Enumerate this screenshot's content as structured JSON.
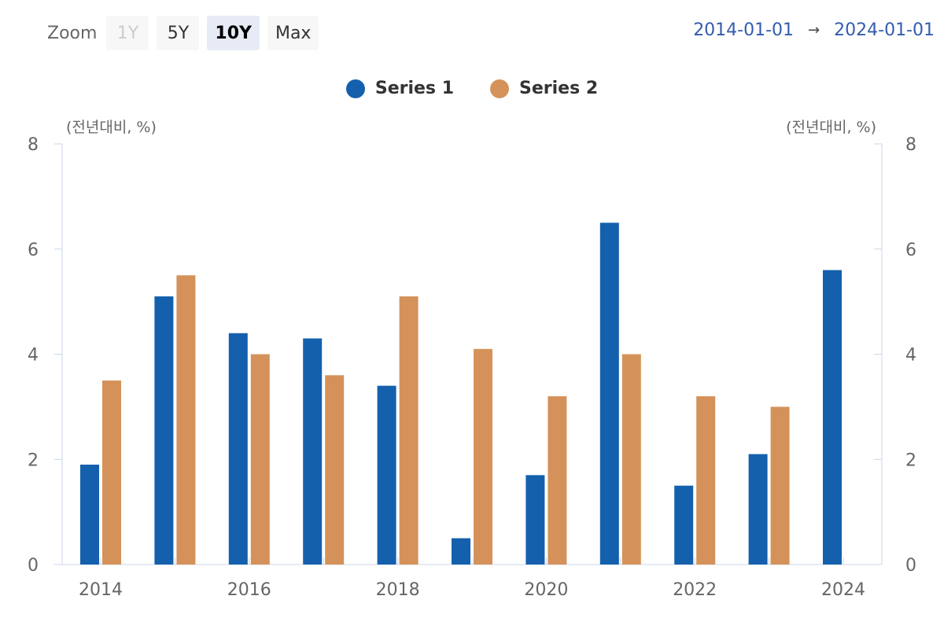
{
  "toolbar": {
    "zoom_label": "Zoom",
    "buttons": [
      {
        "label": "1Y",
        "state": "disabled"
      },
      {
        "label": "5Y",
        "state": "normal"
      },
      {
        "label": "10Y",
        "state": "active"
      },
      {
        "label": "Max",
        "state": "normal"
      }
    ]
  },
  "range": {
    "from": "2014-01-01",
    "arrow": "→",
    "to": "2024-01-01"
  },
  "colors": {
    "series1": "#1460ad",
    "series2": "#d4925a",
    "axis_line": "#ccd6eb",
    "link": "#335cad"
  },
  "chart_data": {
    "type": "bar",
    "categories": [
      "2014",
      "2015",
      "2016",
      "2017",
      "2018",
      "2019",
      "2020",
      "2021",
      "2022",
      "2023",
      "2024"
    ],
    "x_tick_labels": [
      "2014",
      "2016",
      "2018",
      "2020",
      "2022",
      "2024"
    ],
    "series": [
      {
        "name": "Series 1",
        "values": [
          1.9,
          5.1,
          4.4,
          4.3,
          3.4,
          0.5,
          1.7,
          6.5,
          1.5,
          2.1,
          5.6
        ]
      },
      {
        "name": "Series 2",
        "values": [
          3.5,
          5.5,
          4.0,
          3.6,
          5.1,
          4.1,
          3.2,
          4.0,
          3.2,
          3.0,
          null
        ]
      }
    ],
    "y_left": {
      "title": "(전년대비, %)",
      "ylim": [
        0,
        8
      ],
      "ticks": [
        "0",
        "2",
        "4",
        "6",
        "8"
      ]
    },
    "y_right": {
      "title": "(전년대비, %)",
      "ylim": [
        0,
        8
      ],
      "ticks": [
        "0",
        "2",
        "4",
        "6",
        "8"
      ]
    },
    "legend_placement": "top-center",
    "grid": false
  }
}
